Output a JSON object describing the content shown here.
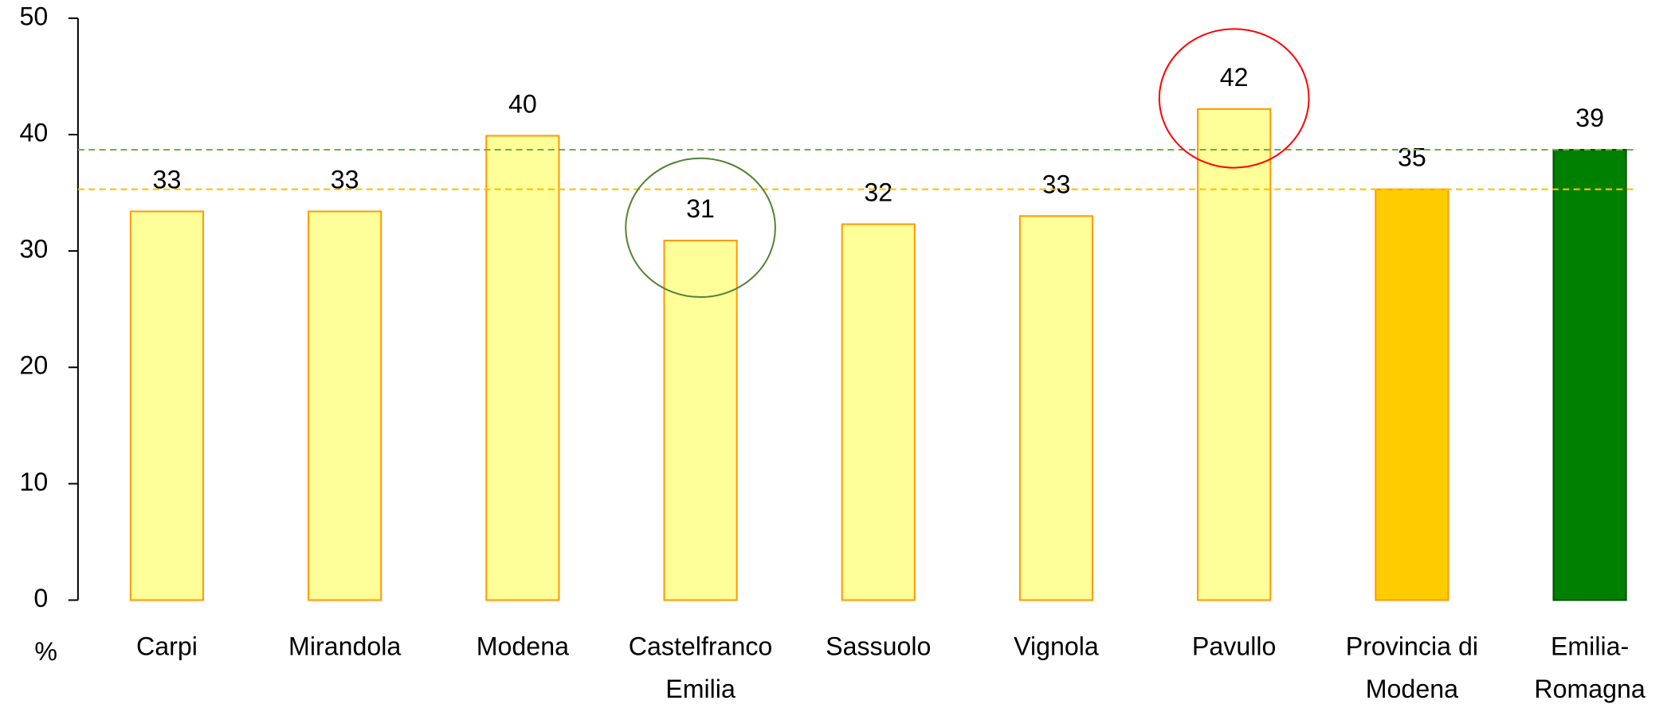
{
  "chart_data": {
    "type": "bar",
    "y_axis_label": "%",
    "categories": [
      [
        "Carpi"
      ],
      [
        "Mirandola"
      ],
      [
        "Modena"
      ],
      [
        "Castelfranco",
        "Emilia"
      ],
      [
        "Sassuolo"
      ],
      [
        "Vignola"
      ],
      [
        "Pavullo"
      ],
      [
        "Provincia di",
        "Modena"
      ],
      [
        "Emilia-",
        "Romagna"
      ]
    ],
    "values": [
      33.4,
      33.4,
      39.9,
      30.9,
      32.3,
      33.0,
      42.2,
      35.3,
      38.7
    ],
    "value_labels": [
      "33",
      "33",
      "40",
      "31",
      "32",
      "33",
      "42",
      "35",
      "39"
    ],
    "colors": [
      "#ffff99",
      "#ffff99",
      "#ffff99",
      "#ffff99",
      "#ffff99",
      "#ffff99",
      "#ffff99",
      "#ffcc00",
      "#008000"
    ],
    "edge_colors": [
      "#ff9900",
      "#ff9900",
      "#ff9900",
      "#ff9900",
      "#ff9900",
      "#ff9900",
      "#ff9900",
      "#ff9900",
      "#005000"
    ],
    "reference_lines": [
      {
        "value": 38.7,
        "color": "#70ad47"
      },
      {
        "value": 35.3,
        "color": "#ffc000"
      }
    ],
    "ylim": [
      0,
      50
    ],
    "yticks": [
      0,
      10,
      20,
      30,
      40,
      50
    ]
  }
}
